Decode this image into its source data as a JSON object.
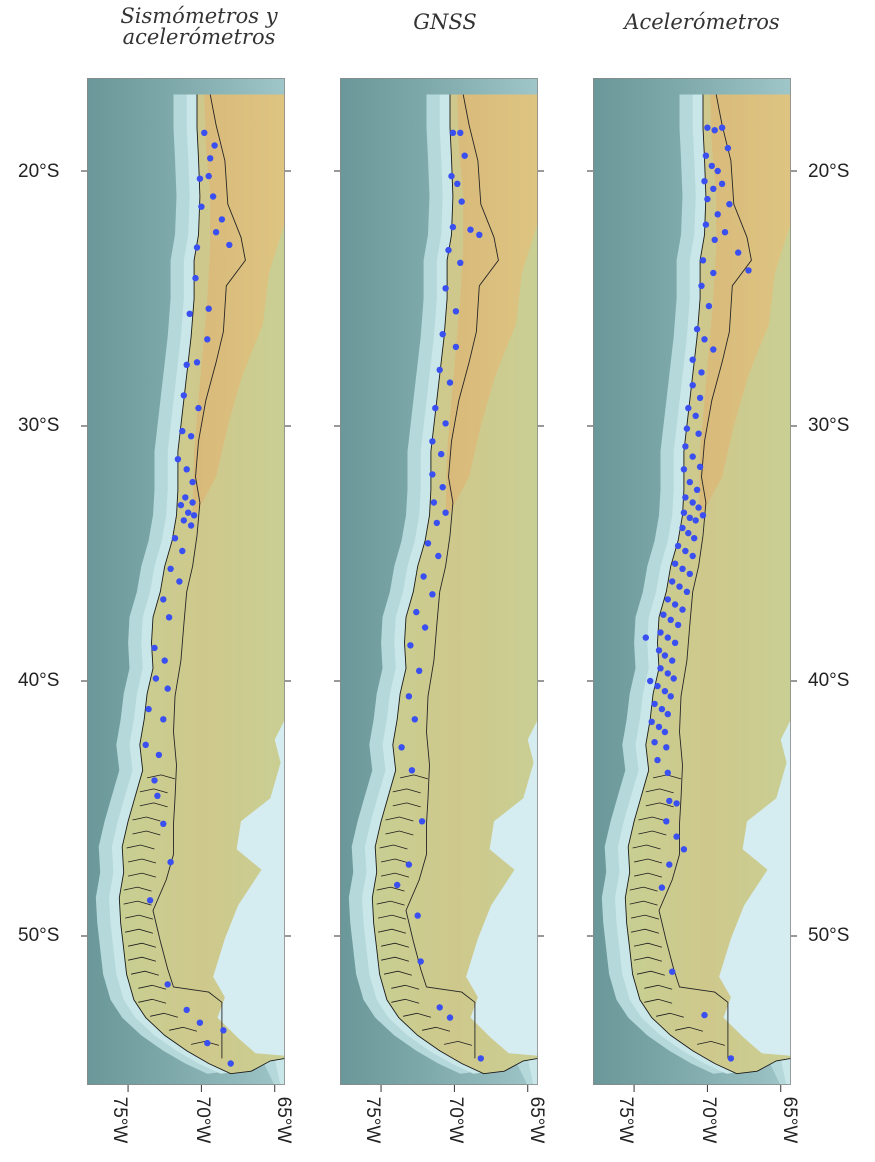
{
  "panels": [
    {
      "title_line1": "Sismómetros y",
      "title_line2": "acelerómetros"
    },
    {
      "title_line1": "GNSS",
      "title_line2": ""
    },
    {
      "title_line1": "Acelerómetros",
      "title_line2": ""
    }
  ],
  "latitude_labels": [
    "20°S",
    "30°S",
    "40°S",
    "50°S"
  ],
  "longitude_labels": [
    "75°W",
    "70°W",
    "65°W"
  ],
  "colors": {
    "ocean_deep": "#6f9b9d",
    "ocean_shelf": "#c9e6e8",
    "land_low": "#c9cf93",
    "land_high": "#d8b77a",
    "atlantic": "#d5ecf0",
    "station": "#3a4ff0"
  },
  "stations": {
    "seismometers_accelerometers": [
      [
        -69.8,
        -18.5
      ],
      [
        -69.4,
        -19.5
      ],
      [
        -69.1,
        -19.0
      ],
      [
        -70.1,
        -20.3
      ],
      [
        -69.5,
        -20.2
      ],
      [
        -69.2,
        -21.0
      ],
      [
        -70.0,
        -21.4
      ],
      [
        -68.6,
        -21.9
      ],
      [
        -69.0,
        -22.4
      ],
      [
        -70.3,
        -23.0
      ],
      [
        -68.1,
        -22.9
      ],
      [
        -70.4,
        -24.2
      ],
      [
        -69.5,
        -25.4
      ],
      [
        -70.8,
        -25.6
      ],
      [
        -69.6,
        -26.6
      ],
      [
        -71.0,
        -27.6
      ],
      [
        -70.3,
        -27.5
      ],
      [
        -71.2,
        -28.8
      ],
      [
        -70.2,
        -29.3
      ],
      [
        -71.3,
        -30.2
      ],
      [
        -70.7,
        -30.4
      ],
      [
        -71.6,
        -31.3
      ],
      [
        -71.0,
        -31.7
      ],
      [
        -70.6,
        -32.2
      ],
      [
        -71.1,
        -32.8
      ],
      [
        -70.6,
        -33.0
      ],
      [
        -71.4,
        -33.1
      ],
      [
        -70.9,
        -33.4
      ],
      [
        -70.5,
        -33.5
      ],
      [
        -71.2,
        -33.7
      ],
      [
        -70.7,
        -33.9
      ],
      [
        -71.8,
        -34.4
      ],
      [
        -71.3,
        -34.9
      ],
      [
        -72.1,
        -35.6
      ],
      [
        -71.5,
        -36.1
      ],
      [
        -72.6,
        -36.8
      ],
      [
        -72.2,
        -37.5
      ],
      [
        -73.2,
        -38.7
      ],
      [
        -72.5,
        -39.2
      ],
      [
        -73.1,
        -39.9
      ],
      [
        -72.3,
        -40.3
      ],
      [
        -73.6,
        -41.1
      ],
      [
        -72.6,
        -41.5
      ],
      [
        -73.8,
        -42.5
      ],
      [
        -72.9,
        -42.9
      ],
      [
        -73.2,
        -43.9
      ],
      [
        -72.6,
        -45.6
      ],
      [
        -72.1,
        -47.1
      ],
      [
        -73.5,
        -48.6
      ],
      [
        -72.3,
        -51.9
      ],
      [
        -71.0,
        -52.9
      ],
      [
        -70.1,
        -53.4
      ],
      [
        -68.5,
        -53.7
      ],
      [
        -69.6,
        -54.2
      ],
      [
        -68.0,
        -55.0
      ],
      [
        -73.0,
        -44.5
      ]
    ],
    "gnss": [
      [
        -70.1,
        -18.5
      ],
      [
        -69.6,
        -18.5
      ],
      [
        -69.3,
        -19.4
      ],
      [
        -70.2,
        -20.2
      ],
      [
        -69.8,
        -20.5
      ],
      [
        -69.5,
        -21.2
      ],
      [
        -70.1,
        -22.2
      ],
      [
        -68.9,
        -22.3
      ],
      [
        -68.3,
        -22.5
      ],
      [
        -70.4,
        -23.1
      ],
      [
        -69.6,
        -23.6
      ],
      [
        -70.6,
        -24.6
      ],
      [
        -69.9,
        -25.5
      ],
      [
        -70.8,
        -26.4
      ],
      [
        -69.9,
        -26.9
      ],
      [
        -71.0,
        -27.8
      ],
      [
        -70.3,
        -28.3
      ],
      [
        -71.3,
        -29.3
      ],
      [
        -70.6,
        -29.9
      ],
      [
        -71.5,
        -30.6
      ],
      [
        -70.9,
        -31.1
      ],
      [
        -71.5,
        -31.9
      ],
      [
        -70.8,
        -32.4
      ],
      [
        -71.4,
        -33.0
      ],
      [
        -70.6,
        -33.4
      ],
      [
        -71.2,
        -33.8
      ],
      [
        -71.8,
        -34.6
      ],
      [
        -71.1,
        -35.1
      ],
      [
        -72.1,
        -35.9
      ],
      [
        -71.5,
        -36.6
      ],
      [
        -72.6,
        -37.3
      ],
      [
        -72.0,
        -37.9
      ],
      [
        -73.0,
        -38.6
      ],
      [
        -72.4,
        -39.6
      ],
      [
        -73.1,
        -40.6
      ],
      [
        -72.7,
        -41.5
      ],
      [
        -73.6,
        -42.6
      ],
      [
        -72.9,
        -43.5
      ],
      [
        -72.2,
        -45.5
      ],
      [
        -73.1,
        -47.2
      ],
      [
        -73.9,
        -48.0
      ],
      [
        -72.5,
        -49.2
      ],
      [
        -72.3,
        -51.0
      ],
      [
        -71.0,
        -52.8
      ],
      [
        -70.3,
        -53.2
      ],
      [
        -68.2,
        -54.8
      ]
    ],
    "accelerometers": [
      [
        -70.0,
        -18.3
      ],
      [
        -69.5,
        -18.4
      ],
      [
        -69.0,
        -18.3
      ],
      [
        -68.6,
        -19.1
      ],
      [
        -70.1,
        -19.4
      ],
      [
        -69.7,
        -19.8
      ],
      [
        -69.3,
        -20.0
      ],
      [
        -70.2,
        -20.4
      ],
      [
        -69.6,
        -20.7
      ],
      [
        -69.0,
        -20.5
      ],
      [
        -70.0,
        -21.1
      ],
      [
        -69.3,
        -21.7
      ],
      [
        -68.5,
        -21.3
      ],
      [
        -70.1,
        -22.1
      ],
      [
        -69.5,
        -22.7
      ],
      [
        -68.8,
        -22.4
      ],
      [
        -67.9,
        -23.2
      ],
      [
        -70.3,
        -23.5
      ],
      [
        -69.6,
        -24.0
      ],
      [
        -67.2,
        -23.9
      ],
      [
        -70.4,
        -24.5
      ],
      [
        -69.9,
        -25.3
      ],
      [
        -70.7,
        -26.2
      ],
      [
        -70.2,
        -26.6
      ],
      [
        -69.6,
        -27.0
      ],
      [
        -71.0,
        -27.4
      ],
      [
        -70.4,
        -27.9
      ],
      [
        -71.0,
        -28.4
      ],
      [
        -70.5,
        -28.9
      ],
      [
        -71.3,
        -29.3
      ],
      [
        -70.8,
        -29.6
      ],
      [
        -71.4,
        -30.1
      ],
      [
        -70.6,
        -30.3
      ],
      [
        -71.5,
        -30.8
      ],
      [
        -71.0,
        -31.2
      ],
      [
        -70.5,
        -31.6
      ],
      [
        -71.6,
        -31.7
      ],
      [
        -71.2,
        -32.2
      ],
      [
        -70.7,
        -32.5
      ],
      [
        -71.5,
        -32.8
      ],
      [
        -71.0,
        -33.0
      ],
      [
        -70.6,
        -33.2
      ],
      [
        -71.6,
        -33.4
      ],
      [
        -71.2,
        -33.6
      ],
      [
        -70.8,
        -33.7
      ],
      [
        -70.3,
        -33.5
      ],
      [
        -71.7,
        -34.0
      ],
      [
        -71.3,
        -34.2
      ],
      [
        -70.9,
        -34.4
      ],
      [
        -72.0,
        -34.7
      ],
      [
        -71.5,
        -34.9
      ],
      [
        -71.0,
        -35.1
      ],
      [
        -72.2,
        -35.4
      ],
      [
        -71.7,
        -35.6
      ],
      [
        -71.2,
        -35.8
      ],
      [
        -72.4,
        -36.1
      ],
      [
        -71.9,
        -36.3
      ],
      [
        -71.4,
        -36.5
      ],
      [
        -72.7,
        -36.8
      ],
      [
        -72.2,
        -37.0
      ],
      [
        -71.7,
        -37.2
      ],
      [
        -73.0,
        -37.4
      ],
      [
        -72.5,
        -37.6
      ],
      [
        -72.0,
        -37.8
      ],
      [
        -73.2,
        -38.1
      ],
      [
        -72.7,
        -38.3
      ],
      [
        -72.2,
        -38.5
      ],
      [
        -73.3,
        -38.8
      ],
      [
        -72.9,
        -39.0
      ],
      [
        -72.4,
        -39.2
      ],
      [
        -73.2,
        -39.5
      ],
      [
        -72.7,
        -39.7
      ],
      [
        -72.3,
        -39.9
      ],
      [
        -73.4,
        -40.2
      ],
      [
        -72.9,
        -40.4
      ],
      [
        -72.5,
        -40.6
      ],
      [
        -73.6,
        -40.9
      ],
      [
        -73.1,
        -41.1
      ],
      [
        -72.7,
        -41.3
      ],
      [
        -73.8,
        -41.6
      ],
      [
        -73.3,
        -41.8
      ],
      [
        -72.9,
        -42.0
      ],
      [
        -73.6,
        -42.4
      ],
      [
        -72.8,
        -42.6
      ],
      [
        -73.4,
        -43.1
      ],
      [
        -72.7,
        -43.6
      ],
      [
        -72.6,
        -44.7
      ],
      [
        -72.1,
        -44.8
      ],
      [
        -72.8,
        -45.5
      ],
      [
        -72.1,
        -46.1
      ],
      [
        -71.6,
        -46.6
      ],
      [
        -72.6,
        -47.2
      ],
      [
        -73.1,
        -48.1
      ],
      [
        -72.4,
        -51.4
      ],
      [
        -70.2,
        -53.1
      ],
      [
        -68.4,
        -54.8
      ],
      [
        -73.9,
        -40.0
      ],
      [
        -74.2,
        -38.3
      ]
    ]
  }
}
